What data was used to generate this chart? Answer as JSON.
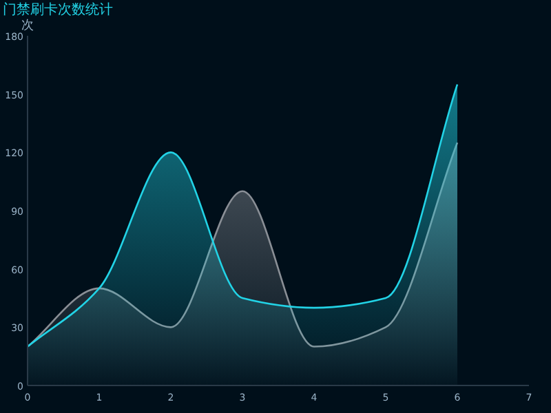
{
  "chart_data": {
    "type": "area",
    "title": "门禁刷卡次数统计",
    "ylabel": "次",
    "x": [
      0,
      1,
      2,
      3,
      4,
      5,
      6
    ],
    "series": [
      {
        "color": "#8a8f96",
        "values": [
          20,
          50,
          30,
          100,
          20,
          30,
          125
        ]
      },
      {
        "color": "#22d3e6",
        "values": [
          20,
          50,
          120,
          45,
          40,
          45,
          155
        ]
      }
    ],
    "xlim": [
      0,
      7
    ],
    "xticks": [
      0,
      1,
      2,
      3,
      4,
      5,
      6,
      7
    ],
    "ylim": [
      0,
      180
    ],
    "yticks": [
      0,
      30,
      60,
      90,
      120,
      150,
      180
    ],
    "grid": false
  }
}
